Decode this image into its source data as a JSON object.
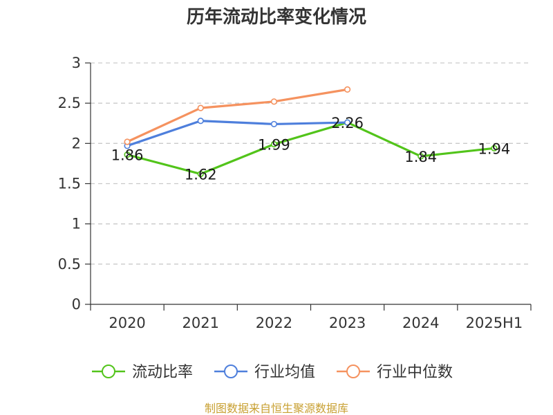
{
  "chart_data": {
    "type": "line",
    "title": "历年流动比率变化情况",
    "categories": [
      "2020",
      "2021",
      "2022",
      "2023",
      "2024",
      "2025H1"
    ],
    "ylim": [
      0,
      3
    ],
    "yticks": [
      "0",
      "0.5",
      "1",
      "1.5",
      "2",
      "2.5",
      "3"
    ],
    "grid": true,
    "legend_position": "bottom",
    "series": [
      {
        "name": "流动比率",
        "color": "#52c41a",
        "values": [
          1.86,
          1.62,
          1.99,
          2.26,
          1.84,
          1.94
        ],
        "show_labels": true,
        "labels": [
          "1.86",
          "1.62",
          "1.99",
          "2.26",
          "1.84",
          "1.94"
        ]
      },
      {
        "name": "行业均值",
        "color": "#4e7fdc",
        "values": [
          1.97,
          2.28,
          2.24,
          2.26,
          null,
          null
        ],
        "show_labels": false
      },
      {
        "name": "行业中位数",
        "color": "#f5925f",
        "values": [
          2.02,
          2.44,
          2.52,
          2.67,
          null,
          null
        ],
        "show_labels": false
      }
    ]
  },
  "source": {
    "text": "制图数据来自恒生聚源数据库",
    "color": "#c8a032"
  }
}
